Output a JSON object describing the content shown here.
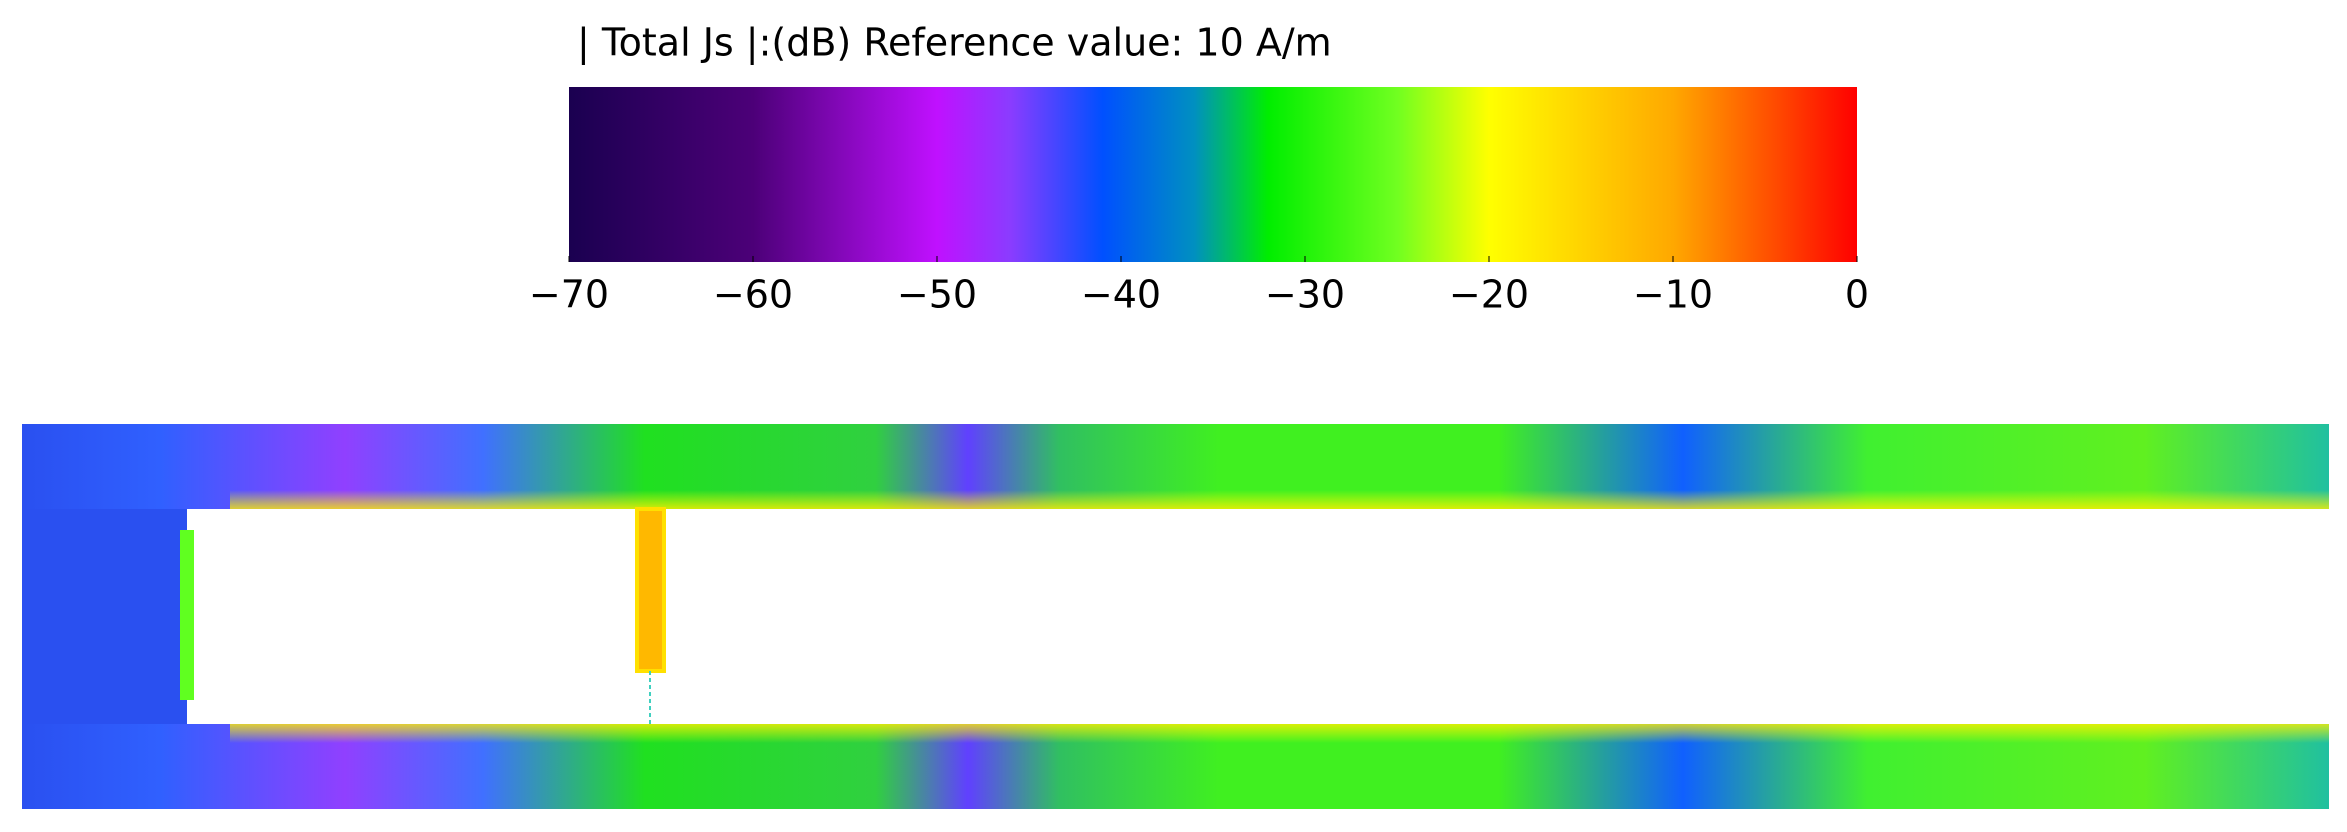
{
  "chart_data": {
    "type": "colorbar",
    "title": "| Total Js |:(dB) Reference value: 10  A/m",
    "xlim": [
      -70,
      0
    ],
    "xticks": [
      {
        "value": -70,
        "label": "−70"
      },
      {
        "value": -60,
        "label": "−60"
      },
      {
        "value": -50,
        "label": "−50"
      },
      {
        "value": -40,
        "label": "−40"
      },
      {
        "value": -30,
        "label": "−30"
      },
      {
        "value": -20,
        "label": "−20"
      },
      {
        "value": -10,
        "label": "−10"
      },
      0
    ],
    "colorscale": [
      [
        -70,
        "#1a0050"
      ],
      [
        -60,
        "#4c0078"
      ],
      [
        -50,
        "#c010ff"
      ],
      [
        -46,
        "#8a3cff"
      ],
      [
        -41,
        "#0050ff"
      ],
      [
        -36,
        "#0090c0"
      ],
      [
        -32,
        "#00ee00"
      ],
      [
        -25,
        "#70ff20"
      ],
      [
        -20,
        "#ffff00"
      ],
      [
        -10,
        "#ffa800"
      ],
      [
        0,
        "#ff0000"
      ]
    ]
  }
}
